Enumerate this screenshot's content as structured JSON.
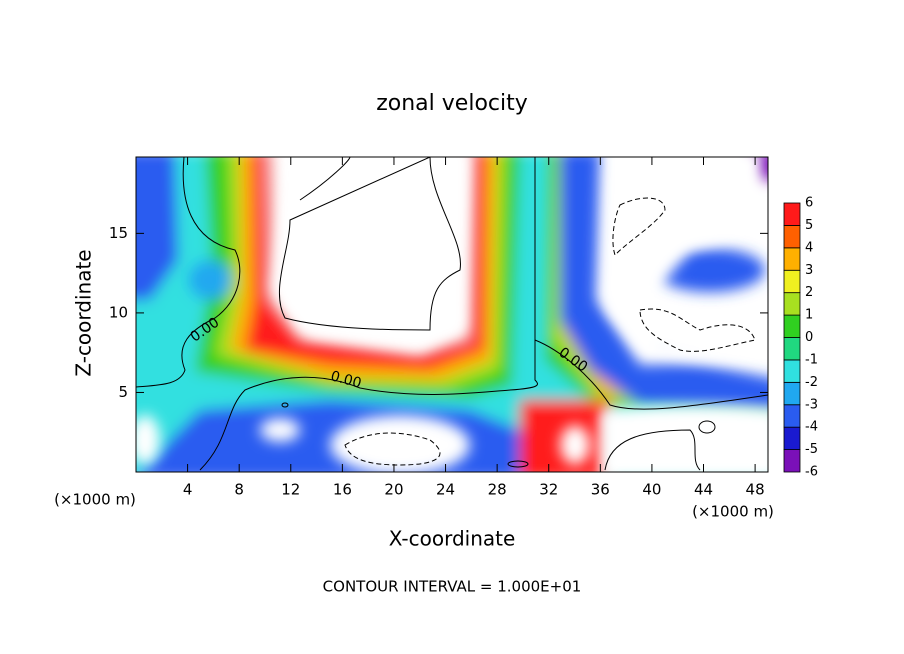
{
  "chart_data": {
    "type": "contour",
    "title": "zonal velocity",
    "x_label": "X-coordinate",
    "y_label": "Z-coordinate",
    "x_unit_label": "(×1000 m)",
    "y_unit_label": "(×1000 m)",
    "footer": "CONTOUR INTERVAL = 1.000E+01",
    "contour_labels": [
      "0.00",
      "0.00",
      "0.00"
    ],
    "xlim": [
      0,
      49
    ],
    "ylim": [
      0,
      19.8
    ],
    "xticks": [
      4,
      8,
      12,
      16,
      20,
      24,
      28,
      32,
      36,
      40,
      44,
      48
    ],
    "yticks": [
      5,
      10,
      15
    ],
    "colorbar": {
      "levels": [
        -6,
        -5,
        -4,
        -3,
        -2,
        -1,
        0,
        1,
        2,
        3,
        4,
        5,
        6
      ],
      "colors": [
        "#7a10b8",
        "#1a1ad0",
        "#2a5cf0",
        "#20a8f0",
        "#30e0e0",
        "#20d880",
        "#30d020",
        "#a8e020",
        "#f0f020",
        "#ffb000",
        "#ff6000",
        "#ff1a1a",
        "#f49090"
      ]
    }
  }
}
